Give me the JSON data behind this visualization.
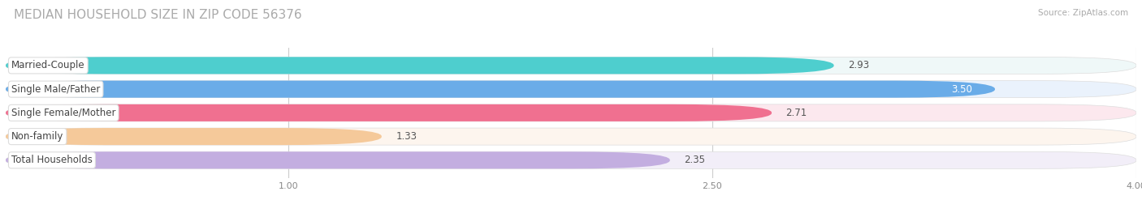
{
  "title": "MEDIAN HOUSEHOLD SIZE IN ZIP CODE 56376",
  "source": "Source: ZipAtlas.com",
  "categories": [
    "Married-Couple",
    "Single Male/Father",
    "Single Female/Mother",
    "Non-family",
    "Total Households"
  ],
  "values": [
    2.93,
    3.5,
    2.71,
    1.33,
    2.35
  ],
  "bar_colors": [
    "#4ecece",
    "#6aace8",
    "#f07090",
    "#f5c99a",
    "#c3aee0"
  ],
  "bar_bg_colors": [
    "#eff8f8",
    "#eaf2fc",
    "#fce8ee",
    "#fdf5ee",
    "#f2eef8"
  ],
  "xlim_start": 0,
  "xlim_end": 4.0,
  "xticks": [
    1.0,
    2.5,
    4.0
  ],
  "value_fontsize": 8.5,
  "label_fontsize": 8.5,
  "title_fontsize": 11,
  "background_color": "#ffffff"
}
